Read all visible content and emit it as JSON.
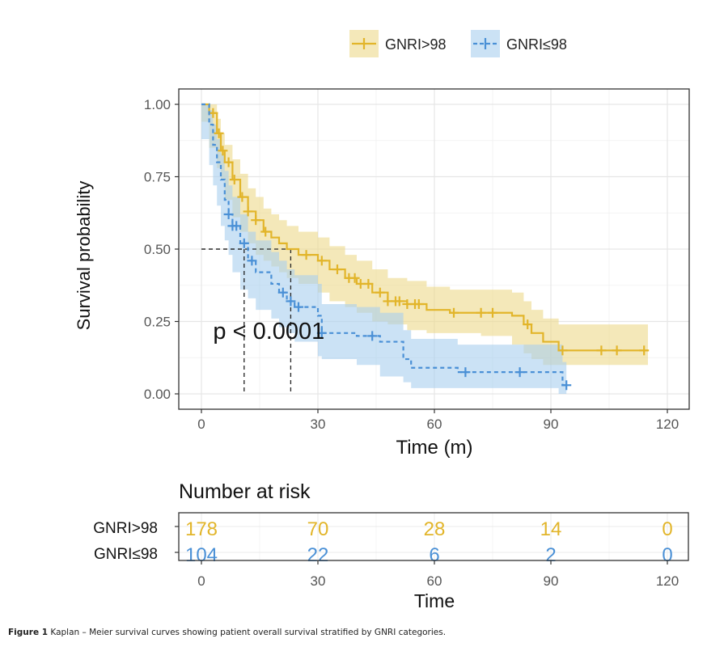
{
  "chart_data": {
    "type": "line",
    "subtype": "kaplan-meier",
    "title": "",
    "xlabel": "Time (m)",
    "ylabel": "Survival probability",
    "xlim": [
      0,
      120
    ],
    "ylim": [
      0,
      1
    ],
    "xticks": [
      0,
      30,
      60,
      90,
      120
    ],
    "xtick_labels": [
      "0",
      "30",
      "60",
      "90",
      "120"
    ],
    "yticks": [
      0,
      0.25,
      0.5,
      0.75,
      1.0
    ],
    "ytick_labels": [
      "0.00",
      "0.25",
      "0.50",
      "0.75",
      "1.00"
    ],
    "grid": true,
    "legend_position": "top-right",
    "annotation": "p < 0.0001",
    "annotation_at": {
      "x": 3,
      "y": 0.19
    },
    "median_lines": [
      {
        "series": "GNRI≤98",
        "x": 11,
        "y": 0.5
      },
      {
        "series": "GNRI>98",
        "x": 23,
        "y": 0.5
      }
    ],
    "series": [
      {
        "name": "GNRI>98",
        "color": "#E2B52A",
        "fill": "#EDD98A",
        "linestyle": "solid",
        "x": [
          0,
          2,
          4,
          5,
          6,
          8,
          10,
          12,
          14,
          16,
          18,
          20,
          22,
          25,
          30,
          33,
          37,
          40,
          44,
          48,
          53,
          58,
          64,
          72,
          80,
          83,
          85,
          88,
          92,
          115
        ],
        "y": [
          1.0,
          0.97,
          0.9,
          0.84,
          0.8,
          0.74,
          0.68,
          0.63,
          0.6,
          0.56,
          0.54,
          0.52,
          0.5,
          0.48,
          0.46,
          0.43,
          0.4,
          0.38,
          0.35,
          0.32,
          0.31,
          0.29,
          0.28,
          0.28,
          0.27,
          0.24,
          0.21,
          0.18,
          0.15,
          0.15
        ],
        "ci_upper": [
          1.0,
          1.0,
          0.95,
          0.9,
          0.86,
          0.81,
          0.76,
          0.71,
          0.68,
          0.64,
          0.62,
          0.6,
          0.58,
          0.56,
          0.54,
          0.51,
          0.48,
          0.46,
          0.43,
          0.4,
          0.39,
          0.37,
          0.36,
          0.36,
          0.35,
          0.32,
          0.29,
          0.26,
          0.24,
          0.24
        ],
        "ci_lower": [
          1.0,
          0.94,
          0.85,
          0.78,
          0.74,
          0.67,
          0.61,
          0.56,
          0.52,
          0.48,
          0.46,
          0.44,
          0.42,
          0.4,
          0.38,
          0.35,
          0.32,
          0.3,
          0.28,
          0.25,
          0.24,
          0.22,
          0.21,
          0.21,
          0.2,
          0.17,
          0.14,
          0.12,
          0.1,
          0.1
        ],
        "censor_x": [
          3,
          4.5,
          5.5,
          7,
          8.5,
          10.5,
          12,
          14,
          16.5,
          27,
          31,
          35,
          38,
          39.5,
          41,
          43,
          46,
          48,
          50,
          51,
          53,
          55,
          56,
          65,
          72,
          75,
          84,
          93,
          103,
          107,
          114
        ],
        "risk": [
          178,
          70,
          28,
          14,
          0
        ]
      },
      {
        "name": "GNRI≤98",
        "color": "#4A90D6",
        "fill": "#A9CFEF",
        "linestyle": "dashed",
        "x": [
          0,
          2,
          3,
          4,
          5,
          6,
          7,
          8,
          10,
          12,
          14,
          18,
          20,
          22,
          24,
          30,
          31,
          40,
          46,
          52,
          54,
          66,
          92,
          93,
          94
        ],
        "y": [
          1.0,
          0.93,
          0.86,
          0.8,
          0.74,
          0.67,
          0.62,
          0.58,
          0.52,
          0.46,
          0.42,
          0.38,
          0.35,
          0.32,
          0.3,
          0.27,
          0.21,
          0.2,
          0.18,
          0.12,
          0.09,
          0.075,
          0.075,
          0.03,
          0.03
        ],
        "ci_upper": [
          1.0,
          0.98,
          0.93,
          0.88,
          0.83,
          0.77,
          0.72,
          0.68,
          0.62,
          0.56,
          0.53,
          0.49,
          0.46,
          0.43,
          0.41,
          0.38,
          0.31,
          0.3,
          0.28,
          0.22,
          0.19,
          0.17,
          0.17,
          0.11,
          0.11
        ],
        "ci_lower": [
          1.0,
          0.88,
          0.79,
          0.72,
          0.65,
          0.58,
          0.53,
          0.48,
          0.42,
          0.36,
          0.33,
          0.29,
          0.26,
          0.23,
          0.21,
          0.18,
          0.13,
          0.12,
          0.1,
          0.06,
          0.04,
          0.02,
          0.02,
          0.0,
          0.0
        ],
        "censor_x": [
          7,
          8,
          9,
          11,
          13,
          21,
          23,
          25,
          31,
          44,
          68,
          82,
          94
        ],
        "risk": [
          104,
          22,
          6,
          2,
          0
        ]
      }
    ],
    "risk_table": {
      "title": "Number at risk",
      "xlabel": "Time",
      "times": [
        0,
        30,
        60,
        90,
        120
      ],
      "tick_labels": [
        "0",
        "30",
        "60",
        "90",
        "120"
      ],
      "rows": [
        {
          "label": "GNRI>98",
          "values": [
            178,
            70,
            28,
            14,
            0
          ]
        },
        {
          "label": "GNRI≤98",
          "values": [
            104,
            22,
            6,
            2,
            0
          ]
        }
      ]
    }
  },
  "caption": {
    "label": "Figure 1",
    "text": " Kaplan – Meier survival curves showing patient overall survival stratified by GNRI categories."
  }
}
